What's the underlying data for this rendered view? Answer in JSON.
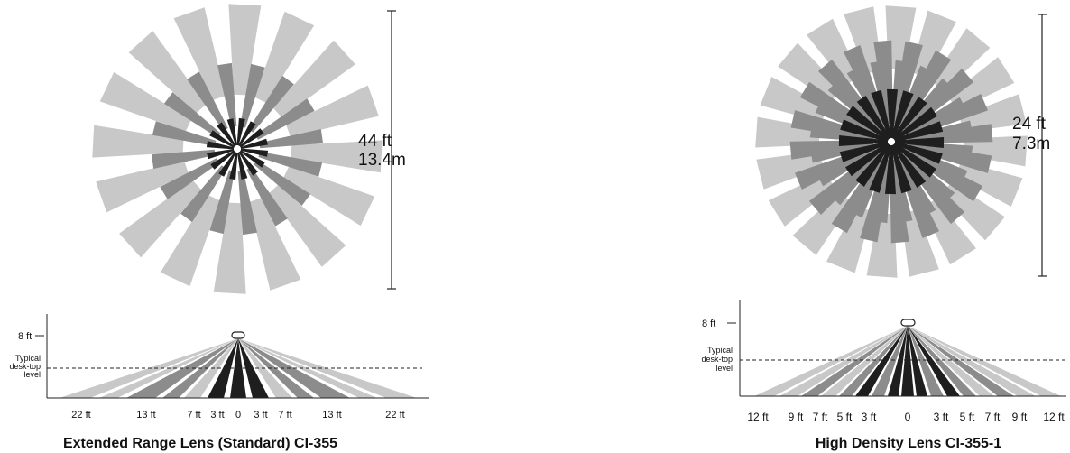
{
  "colors": {
    "light": "#c8c8c8",
    "mid": "#8c8c8c",
    "dark": "#1e1e1e",
    "axis": "#222222"
  },
  "left": {
    "caption": "Extended Range Lens (Standard) CI-355",
    "range_ft": "44 ft",
    "range_m": "13.4m",
    "height_label": "8 ft",
    "desk_label": [
      "Typical",
      "desk-top",
      "level"
    ],
    "ticks": [
      "22 ft",
      "13 ft",
      "7 ft",
      "3 ft",
      "0",
      "3 ft",
      "7 ft",
      "13 ft",
      "22 ft"
    ]
  },
  "right": {
    "caption": "High Density Lens CI-355-1",
    "range_ft": "24 ft",
    "range_m": "7.3m",
    "height_label": "8 ft",
    "desk_label": [
      "Typical",
      "desk-top",
      "level"
    ],
    "ticks": [
      "12 ft",
      "9 ft",
      "7 ft",
      "5 ft",
      "3 ft",
      "0",
      "3 ft",
      "5 ft",
      "7 ft",
      "9 ft",
      "12 ft"
    ]
  }
}
